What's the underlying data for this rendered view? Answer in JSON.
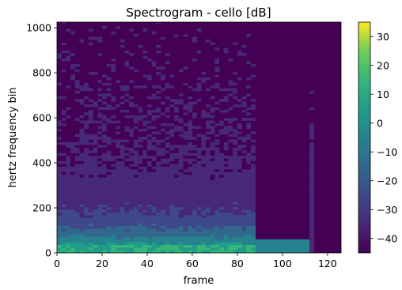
{
  "chart_data": {
    "type": "heatmap",
    "title": "Spectrogram - cello [dB]",
    "xlabel": "frame",
    "ylabel": "hertz frequency bin",
    "xlim": [
      0,
      126
    ],
    "ylim": [
      0,
      1025
    ],
    "x_ticks": [
      0,
      20,
      40,
      60,
      80,
      100,
      120
    ],
    "y_ticks": [
      0,
      200,
      400,
      600,
      800,
      1000
    ],
    "colorbar": {
      "range": [
        -45,
        35
      ],
      "ticks": [
        30,
        20,
        10,
        0,
        -10,
        -20,
        -30,
        -40
      ],
      "tick_labels": [
        "30",
        "20",
        "10",
        "0",
        "−10",
        "−20",
        "−30",
        "−40"
      ],
      "colormap": "viridis"
    },
    "grid": false,
    "description_of_values": {
      "floor_db": -45,
      "strong_low_bins_db": 10,
      "sound_end_frame": 88,
      "low_band_end_frame": 112
    }
  }
}
